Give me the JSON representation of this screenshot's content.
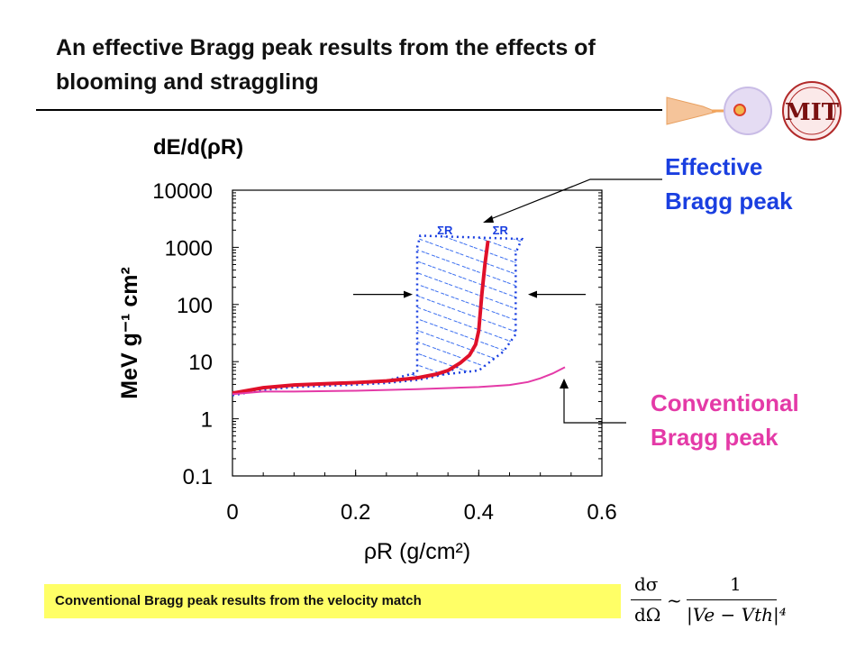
{
  "title": "An effective Bragg peak results from the effects of blooming and straggling",
  "labels": {
    "effective": [
      "Effective",
      "Bragg peak"
    ],
    "conventional": [
      "Conventional",
      "Bragg peak"
    ],
    "sigma": "ΣR",
    "ytitle": "dE/d(ρR)"
  },
  "note": "Conventional Bragg peak results from the velocity match",
  "logo_text": "MIT",
  "formula": {
    "numerator": "dσ",
    "denominator": "dΩ",
    "relation": "~",
    "rhs_num": "1",
    "rhs_den": "|Ve − Vth|⁴"
  },
  "colors": {
    "effective": "#1a3fe0",
    "conventional": "#e43aa7",
    "note_bg": "#ffff66",
    "red_curve": "#e0102a",
    "blue_band": "#1a3fe0"
  },
  "chart_data": {
    "type": "line",
    "xlabel": "ρR (g/cm²)",
    "ylabel": "MeV g⁻¹ cm²",
    "xlim": [
      0,
      0.6
    ],
    "ylim": [
      0.1,
      10000
    ],
    "yscale": "log",
    "x_ticks": [
      "0",
      "0.2",
      "0.4",
      "0.6"
    ],
    "y_ticks": [
      "0.1",
      "1",
      "10",
      "100",
      "1000",
      "10000"
    ],
    "series": [
      {
        "name": "Effective Bragg peak",
        "color": "#e0102a",
        "x": [
          0,
          0.05,
          0.1,
          0.15,
          0.2,
          0.25,
          0.3,
          0.33,
          0.35,
          0.37,
          0.385,
          0.395,
          0.4,
          0.405,
          0.41,
          0.415
        ],
        "y": [
          2.8,
          3.5,
          3.9,
          4.1,
          4.3,
          4.6,
          5.2,
          6.0,
          7.0,
          9.5,
          13,
          20,
          35,
          150,
          500,
          1300
        ]
      },
      {
        "name": "Conventional Bragg peak",
        "color": "#e43aa7",
        "x": [
          0,
          0.05,
          0.1,
          0.2,
          0.3,
          0.4,
          0.45,
          0.48,
          0.5,
          0.52,
          0.54
        ],
        "y": [
          2.7,
          3.0,
          3.0,
          3.1,
          3.3,
          3.6,
          3.9,
          4.4,
          5.1,
          6.2,
          8.0
        ]
      }
    ],
    "band": {
      "left": {
        "x": [
          0.3,
          0.3,
          0.305
        ],
        "y": [
          6.5,
          1000,
          1600
        ]
      },
      "right": {
        "x": [
          0.46,
          0.46,
          0.47
        ],
        "y": [
          30,
          800,
          1400
        ]
      }
    }
  }
}
